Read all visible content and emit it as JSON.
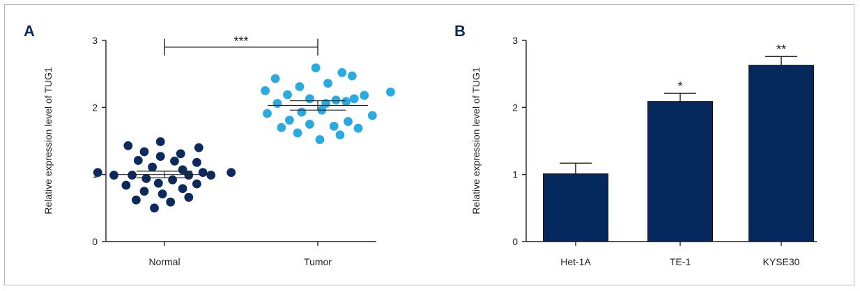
{
  "chart_data": [
    {
      "type": "scatter",
      "panel": "A",
      "ylabel": "Relative expression level of TUG1",
      "xlabel": "",
      "ylim": [
        0,
        3
      ],
      "yticks": [
        "0",
        "1",
        "2",
        "3"
      ],
      "categories": [
        "Normal",
        "Tumor"
      ],
      "series": [
        {
          "category": "Normal",
          "color": "#0c2a5e",
          "mean": 1.0,
          "sem": 0.05,
          "points": [
            {
              "dx": -0.33,
              "y": 1.03
            },
            {
              "dx": -0.25,
              "y": 0.99
            },
            {
              "dx": -0.19,
              "y": 0.84
            },
            {
              "dx": -0.18,
              "y": 1.43
            },
            {
              "dx": -0.16,
              "y": 0.99
            },
            {
              "dx": -0.14,
              "y": 0.62
            },
            {
              "dx": -0.13,
              "y": 1.21
            },
            {
              "dx": -0.1,
              "y": 0.75
            },
            {
              "dx": -0.1,
              "y": 1.34
            },
            {
              "dx": -0.09,
              "y": 0.94
            },
            {
              "dx": -0.06,
              "y": 1.11
            },
            {
              "dx": -0.05,
              "y": 0.5
            },
            {
              "dx": -0.03,
              "y": 0.87
            },
            {
              "dx": -0.02,
              "y": 1.27
            },
            {
              "dx": -0.02,
              "y": 1.49
            },
            {
              "dx": -0.01,
              "y": 0.71
            },
            {
              "dx": 0.03,
              "y": 0.59
            },
            {
              "dx": 0.04,
              "y": 0.92
            },
            {
              "dx": 0.05,
              "y": 1.2
            },
            {
              "dx": 0.08,
              "y": 1.31
            },
            {
              "dx": 0.09,
              "y": 1.07
            },
            {
              "dx": 0.09,
              "y": 0.79
            },
            {
              "dx": 0.12,
              "y": 0.66
            },
            {
              "dx": 0.12,
              "y": 0.99
            },
            {
              "dx": 0.16,
              "y": 0.86
            },
            {
              "dx": 0.16,
              "y": 1.18
            },
            {
              "dx": 0.17,
              "y": 1.4
            },
            {
              "dx": 0.19,
              "y": 1.03
            },
            {
              "dx": 0.23,
              "y": 0.99
            },
            {
              "dx": 0.33,
              "y": 1.03
            }
          ]
        },
        {
          "category": "Tumor",
          "color": "#29aae1",
          "mean": 2.03,
          "sem": 0.07,
          "points": [
            {
              "dx": -0.26,
              "y": 2.25
            },
            {
              "dx": -0.25,
              "y": 1.91
            },
            {
              "dx": -0.21,
              "y": 2.43
            },
            {
              "dx": -0.2,
              "y": 2.06
            },
            {
              "dx": -0.18,
              "y": 1.7
            },
            {
              "dx": -0.15,
              "y": 2.19
            },
            {
              "dx": -0.14,
              "y": 1.81
            },
            {
              "dx": -0.1,
              "y": 1.62
            },
            {
              "dx": -0.09,
              "y": 2.31
            },
            {
              "dx": -0.08,
              "y": 1.93
            },
            {
              "dx": -0.04,
              "y": 2.13
            },
            {
              "dx": -0.04,
              "y": 1.75
            },
            {
              "dx": -0.01,
              "y": 2.59
            },
            {
              "dx": 0.01,
              "y": 1.52
            },
            {
              "dx": 0.02,
              "y": 1.96
            },
            {
              "dx": 0.04,
              "y": 2.06
            },
            {
              "dx": 0.05,
              "y": 2.36
            },
            {
              "dx": 0.08,
              "y": 1.72
            },
            {
              "dx": 0.09,
              "y": 2.11
            },
            {
              "dx": 0.11,
              "y": 1.59
            },
            {
              "dx": 0.12,
              "y": 2.52
            },
            {
              "dx": 0.14,
              "y": 2.09
            },
            {
              "dx": 0.15,
              "y": 1.79
            },
            {
              "dx": 0.17,
              "y": 2.47
            },
            {
              "dx": 0.18,
              "y": 2.13
            },
            {
              "dx": 0.2,
              "y": 1.69
            },
            {
              "dx": 0.23,
              "y": 2.18
            },
            {
              "dx": 0.27,
              "y": 1.88
            },
            {
              "dx": 0.36,
              "y": 2.23
            }
          ]
        }
      ],
      "annotations": [
        {
          "text": "***",
          "from": 0,
          "to": 1,
          "y": 2.9
        }
      ]
    },
    {
      "type": "bar",
      "panel": "B",
      "ylabel": "Relative expression level of TUG1",
      "xlabel": "",
      "ylim": [
        0,
        3
      ],
      "yticks": [
        "0",
        "1",
        "2",
        "3"
      ],
      "categories": [
        "Het-1A",
        "TE-1",
        "KYSE30"
      ],
      "values": [
        1.01,
        2.09,
        2.63
      ],
      "errors": [
        0.16,
        0.12,
        0.13
      ],
      "labels": [
        "",
        "*",
        "**"
      ],
      "color": "#05295c"
    }
  ]
}
